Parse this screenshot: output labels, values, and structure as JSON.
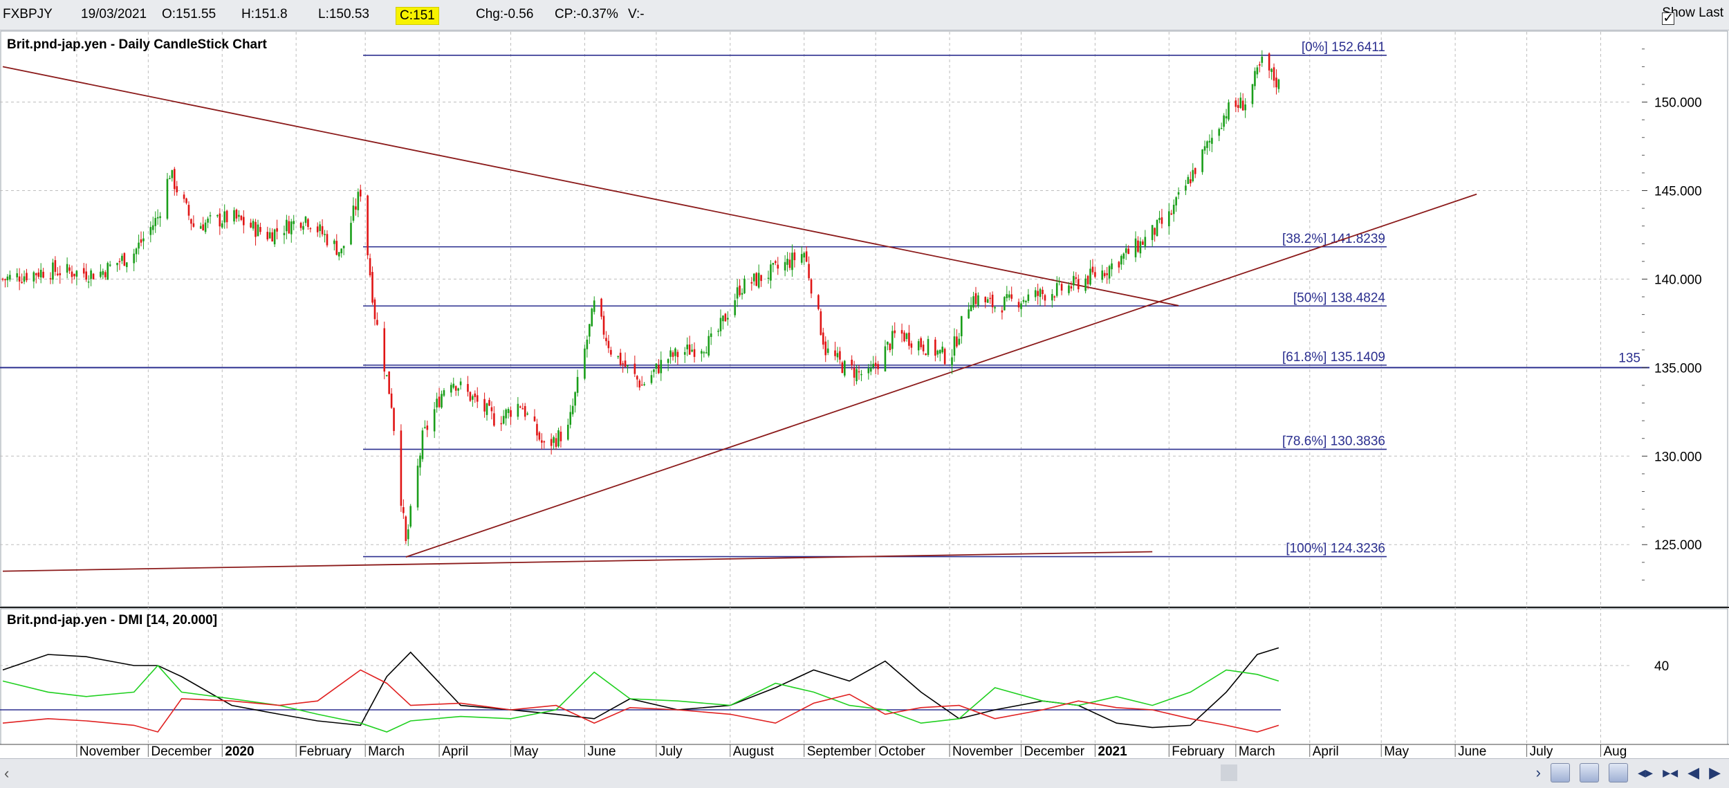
{
  "header": {
    "symbol": "FXBPJY",
    "date": "19/03/2021",
    "open": "O:151.55",
    "high": "H:151.8",
    "low": "L:150.53",
    "close": "C:151",
    "change": "Chg:-0.56",
    "change_pct": "CP:-0.37%",
    "volume": "V:-",
    "show_last_label": "Show Last",
    "show_last_checked": true
  },
  "colors": {
    "fib_line": "#2b2f8f",
    "trendline": "#8b1a1a",
    "bull_candle": "#1a9e1a",
    "bear_candle": "#e01515",
    "adx": "#000000",
    "plus_di": "#20d020",
    "minus_di": "#e02020",
    "grid": "#bdbdbd"
  },
  "chart_data": [
    {
      "type": "candlestick",
      "title": "Brit.pnd-jap.yen - Daily CandleStick Chart",
      "ylim": [
        122,
        153.5
      ],
      "y_ticks": [
        "150.000",
        "145.000",
        "140.000",
        "135.000",
        "130.000",
        "125.000"
      ],
      "y_tick_values": [
        150,
        145,
        140,
        135,
        130,
        125
      ],
      "price_path": {
        "dates": [
          "2019-10-01",
          "2019-10-20",
          "2019-11-10",
          "2019-11-25",
          "2019-12-05",
          "2019-12-10",
          "2019-12-20",
          "2020-01-05",
          "2020-01-20",
          "2020-02-05",
          "2020-02-20",
          "2020-02-28",
          "2020-03-05",
          "2020-03-12",
          "2020-03-18",
          "2020-03-25",
          "2020-04-05",
          "2020-04-25",
          "2020-05-05",
          "2020-05-15",
          "2020-05-25",
          "2020-06-05",
          "2020-06-12",
          "2020-06-25",
          "2020-07-05",
          "2020-07-25",
          "2020-08-05",
          "2020-08-20",
          "2020-09-01",
          "2020-09-10",
          "2020-09-18",
          "2020-09-28",
          "2020-10-10",
          "2020-10-25",
          "2020-11-01",
          "2020-11-10",
          "2020-11-20",
          "2020-12-05",
          "2020-12-20",
          "2021-01-05",
          "2021-01-20",
          "2021-02-01",
          "2021-02-15",
          "2021-02-25",
          "2021-03-05",
          "2021-03-12",
          "2021-03-19"
        ],
        "values": [
          140.0,
          140.5,
          140.3,
          141.5,
          143.5,
          146.0,
          143.0,
          143.5,
          142.5,
          143.5,
          141.5,
          145.0,
          138.0,
          133.0,
          125.0,
          131.0,
          134.5,
          132.0,
          133.0,
          130.5,
          131.5,
          138.5,
          136.0,
          134.0,
          135.5,
          136.5,
          139.5,
          140.5,
          141.5,
          136.0,
          135.0,
          134.5,
          137.0,
          136.0,
          135.5,
          139.0,
          138.5,
          139.0,
          139.5,
          140.5,
          142.0,
          143.5,
          147.0,
          149.5,
          150.0,
          152.2,
          151.0
        ]
      },
      "horizontal_lines": [
        {
          "label": "[0%] 152.6411",
          "value": 152.6411
        },
        {
          "label": "[38.2%] 141.8239",
          "value": 141.8239
        },
        {
          "label": "[50%] 138.4824",
          "value": 138.4824
        },
        {
          "label": "[61.8%] 135.1409",
          "value": 135.1409
        },
        {
          "label": "[78.6%] 130.3836",
          "value": 130.3836
        },
        {
          "label": "[100%] 124.3236",
          "value": 124.3236
        }
      ],
      "level_line": {
        "label": "135",
        "value": 135.0
      },
      "trendlines": [
        {
          "from": [
            "2019-10-01",
            152.0
          ],
          "to": [
            "2021-02-05",
            138.5
          ]
        },
        {
          "from": [
            "2020-03-18",
            124.3
          ],
          "to": [
            "2021-06-10",
            144.8
          ]
        },
        {
          "from": [
            "2019-10-01",
            123.5
          ],
          "to": [
            "2021-01-25",
            124.6
          ]
        }
      ],
      "last_close": 151.0
    },
    {
      "type": "line",
      "title": "Brit.pnd-jap.yen - DMI [14, 20.000]",
      "ylim": [
        5,
        55
      ],
      "y_ticks": [
        "40"
      ],
      "y_tick_values": [
        40
      ],
      "threshold": 20.0,
      "series": [
        {
          "role": "ADX",
          "dates": [
            "2019-10-01",
            "2019-10-20",
            "2019-11-05",
            "2019-11-25",
            "2019-12-05",
            "2019-12-15",
            "2020-01-05",
            "2020-01-25",
            "2020-02-10",
            "2020-02-28",
            "2020-03-10",
            "2020-03-20",
            "2020-04-10",
            "2020-05-01",
            "2020-05-20",
            "2020-06-05",
            "2020-06-20",
            "2020-07-10",
            "2020-08-01",
            "2020-08-20",
            "2020-09-05",
            "2020-09-20",
            "2020-10-05",
            "2020-10-20",
            "2020-11-05",
            "2020-11-20",
            "2020-12-10",
            "2020-12-25",
            "2021-01-10",
            "2021-01-25",
            "2021-02-10",
            "2021-02-25",
            "2021-03-10",
            "2021-03-19"
          ],
          "values": [
            38,
            45,
            44,
            40,
            40,
            35,
            22,
            18,
            15,
            13,
            35,
            46,
            22,
            20,
            18,
            16,
            25,
            20,
            22,
            30,
            38,
            33,
            42,
            28,
            16,
            20,
            24,
            22,
            14,
            12,
            13,
            28,
            45,
            48
          ]
        },
        {
          "role": "+DI",
          "dates": [
            "2019-10-01",
            "2019-10-20",
            "2019-11-05",
            "2019-11-25",
            "2019-12-05",
            "2019-12-15",
            "2020-01-05",
            "2020-01-25",
            "2020-02-10",
            "2020-02-28",
            "2020-03-10",
            "2020-03-20",
            "2020-04-10",
            "2020-05-01",
            "2020-05-20",
            "2020-06-05",
            "2020-06-20",
            "2020-07-10",
            "2020-08-01",
            "2020-08-20",
            "2020-09-05",
            "2020-09-20",
            "2020-10-05",
            "2020-10-20",
            "2020-11-05",
            "2020-11-20",
            "2020-12-10",
            "2020-12-25",
            "2021-01-10",
            "2021-01-25",
            "2021-02-10",
            "2021-02-25",
            "2021-03-10",
            "2021-03-19"
          ],
          "values": [
            33,
            28,
            26,
            28,
            40,
            28,
            25,
            22,
            18,
            14,
            10,
            15,
            17,
            16,
            20,
            37,
            25,
            24,
            22,
            32,
            28,
            22,
            20,
            14,
            16,
            30,
            24,
            22,
            26,
            22,
            28,
            38,
            36,
            33
          ]
        },
        {
          "role": "-DI",
          "dates": [
            "2019-10-01",
            "2019-10-20",
            "2019-11-05",
            "2019-11-25",
            "2019-12-05",
            "2019-12-15",
            "2020-01-05",
            "2020-01-25",
            "2020-02-10",
            "2020-02-28",
            "2020-03-10",
            "2020-03-20",
            "2020-04-10",
            "2020-05-01",
            "2020-05-20",
            "2020-06-05",
            "2020-06-20",
            "2020-07-10",
            "2020-08-01",
            "2020-08-20",
            "2020-09-05",
            "2020-09-20",
            "2020-10-05",
            "2020-10-20",
            "2020-11-05",
            "2020-11-20",
            "2020-12-10",
            "2020-12-25",
            "2021-01-10",
            "2021-01-25",
            "2021-02-10",
            "2021-02-25",
            "2021-03-10",
            "2021-03-19"
          ],
          "values": [
            14,
            16,
            15,
            13,
            10,
            25,
            24,
            22,
            24,
            38,
            32,
            22,
            23,
            20,
            22,
            14,
            21,
            20,
            18,
            14,
            23,
            27,
            18,
            21,
            22,
            16,
            20,
            24,
            21,
            20,
            16,
            13,
            10,
            13
          ]
        }
      ]
    }
  ],
  "x_axis": {
    "labels": [
      {
        "text": "November",
        "date": "2019-11-01",
        "bold": false
      },
      {
        "text": "December",
        "date": "2019-12-01",
        "bold": false
      },
      {
        "text": "2020",
        "date": "2020-01-01",
        "bold": true
      },
      {
        "text": "February",
        "date": "2020-02-01",
        "bold": false
      },
      {
        "text": "March",
        "date": "2020-03-01",
        "bold": false
      },
      {
        "text": "April",
        "date": "2020-04-01",
        "bold": false
      },
      {
        "text": "May",
        "date": "2020-05-01",
        "bold": false
      },
      {
        "text": "June",
        "date": "2020-06-01",
        "bold": false
      },
      {
        "text": "July",
        "date": "2020-07-01",
        "bold": false
      },
      {
        "text": "August",
        "date": "2020-08-01",
        "bold": false
      },
      {
        "text": "September",
        "date": "2020-09-01",
        "bold": false
      },
      {
        "text": "October",
        "date": "2020-10-01",
        "bold": false
      },
      {
        "text": "November",
        "date": "2020-11-01",
        "bold": false
      },
      {
        "text": "December",
        "date": "2020-12-01",
        "bold": false
      },
      {
        "text": "2021",
        "date": "2021-01-01",
        "bold": true
      },
      {
        "text": "February",
        "date": "2021-02-01",
        "bold": false
      },
      {
        "text": "March",
        "date": "2021-03-01",
        "bold": false
      },
      {
        "text": "April",
        "date": "2021-04-01",
        "bold": false
      },
      {
        "text": "May",
        "date": "2021-05-01",
        "bold": false
      },
      {
        "text": "June",
        "date": "2021-06-01",
        "bold": false
      },
      {
        "text": "July",
        "date": "2021-07-01",
        "bold": false
      },
      {
        "text": "Aug",
        "date": "2021-08-01",
        "bold": false
      }
    ]
  }
}
